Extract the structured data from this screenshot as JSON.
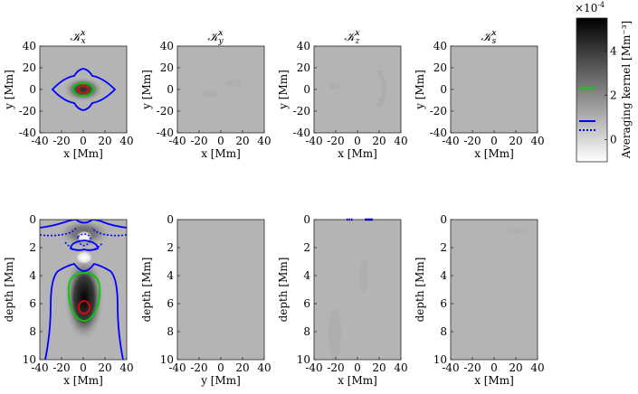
{
  "chart_data": [
    {
      "type": "heatmap",
      "title_main": "𝒦",
      "title_sub": "x",
      "title_sup": "x",
      "xlabel": "x [Mm]",
      "ylabel": "y [Mm]",
      "xlim": [
        -40,
        40
      ],
      "ylim": [
        -40,
        40
      ],
      "xticks": [
        "-40",
        "-20",
        "0",
        "20",
        "40"
      ],
      "yticks": [
        "40",
        "20",
        "0",
        "-20",
        "-40"
      ],
      "contours": [
        {
          "level": 2,
          "color": "#00cc00"
        },
        {
          "level": 0,
          "color": "#0000ff"
        },
        {
          "level": "max",
          "color": "#ff0000"
        }
      ]
    },
    {
      "type": "heatmap",
      "title_main": "𝒦",
      "title_sub": "y",
      "title_sup": "x",
      "xlabel": "x [Mm]",
      "ylabel": "y [Mm]",
      "xlim": [
        -40,
        40
      ],
      "ylim": [
        -40,
        40
      ],
      "xticks": [
        "-40",
        "-20",
        "0",
        "20",
        "40"
      ],
      "yticks": [
        "40",
        "20",
        "0",
        "-20",
        "-40"
      ]
    },
    {
      "type": "heatmap",
      "title_main": "𝒦",
      "title_sub": "z",
      "title_sup": "x",
      "xlabel": "x [Mm]",
      "ylabel": "y [Mm]",
      "xlim": [
        -40,
        40
      ],
      "ylim": [
        -40,
        40
      ],
      "xticks": [
        "-40",
        "-20",
        "0",
        "20",
        "40"
      ],
      "yticks": [
        "40",
        "20",
        "0",
        "-20",
        "-40"
      ]
    },
    {
      "type": "heatmap",
      "title_main": "𝒦",
      "title_sub": "s",
      "title_sup": "x",
      "xlabel": "x [Mm]",
      "ylabel": "y [Mm]",
      "xlim": [
        -40,
        40
      ],
      "ylim": [
        -40,
        40
      ],
      "xticks": [
        "-40",
        "-20",
        "0",
        "20",
        "40"
      ],
      "yticks": [
        "40",
        "20",
        "0",
        "-20",
        "-40"
      ]
    },
    {
      "type": "heatmap",
      "xlabel": "x [Mm]",
      "ylabel": "depth [Mm]",
      "xlim": [
        -40,
        40
      ],
      "ylim": [
        10,
        0
      ],
      "xticks": [
        "-40",
        "-20",
        "0",
        "20",
        "40"
      ],
      "yticks": [
        "0",
        "2",
        "4",
        "6",
        "8",
        "10"
      ]
    },
    {
      "type": "heatmap",
      "xlabel": "y [Mm]",
      "ylabel": "depth [Mm]",
      "xlim": [
        -40,
        40
      ],
      "ylim": [
        10,
        0
      ],
      "xticks": [
        "-40",
        "-20",
        "0",
        "20",
        "40"
      ],
      "yticks": [
        "0",
        "2",
        "4",
        "6",
        "8",
        "10"
      ]
    },
    {
      "type": "heatmap",
      "xlabel": "x [Mm]",
      "ylabel": "depth [Mm]",
      "xlim": [
        -40,
        40
      ],
      "ylim": [
        10,
        0
      ],
      "xticks": [
        "-40",
        "-20",
        "0",
        "20",
        "40"
      ],
      "yticks": [
        "0",
        "2",
        "4",
        "6",
        "8",
        "10"
      ]
    },
    {
      "type": "heatmap",
      "xlabel": "x [Mm]",
      "ylabel": "depth [Mm]",
      "xlim": [
        -40,
        40
      ],
      "ylim": [
        10,
        0
      ],
      "xticks": [
        "-40",
        "-20",
        "0",
        "20",
        "40"
      ],
      "yticks": [
        "0",
        "2",
        "4",
        "6",
        "8",
        "10"
      ]
    }
  ],
  "colorbar": {
    "label": "Averaging kernel [Mm⁻³]",
    "multiplier": "×10",
    "multiplier_exp": "-4",
    "ticks": [
      "4",
      "2",
      "0"
    ],
    "range": [
      -1,
      5.5
    ],
    "legend": [
      {
        "value": 2,
        "color": "#00cc00",
        "style": "solid"
      },
      {
        "value": 0,
        "color": "#0000ff",
        "style": "solid"
      },
      {
        "value": 0,
        "color": "#0000ff",
        "style": "dotted"
      }
    ]
  }
}
